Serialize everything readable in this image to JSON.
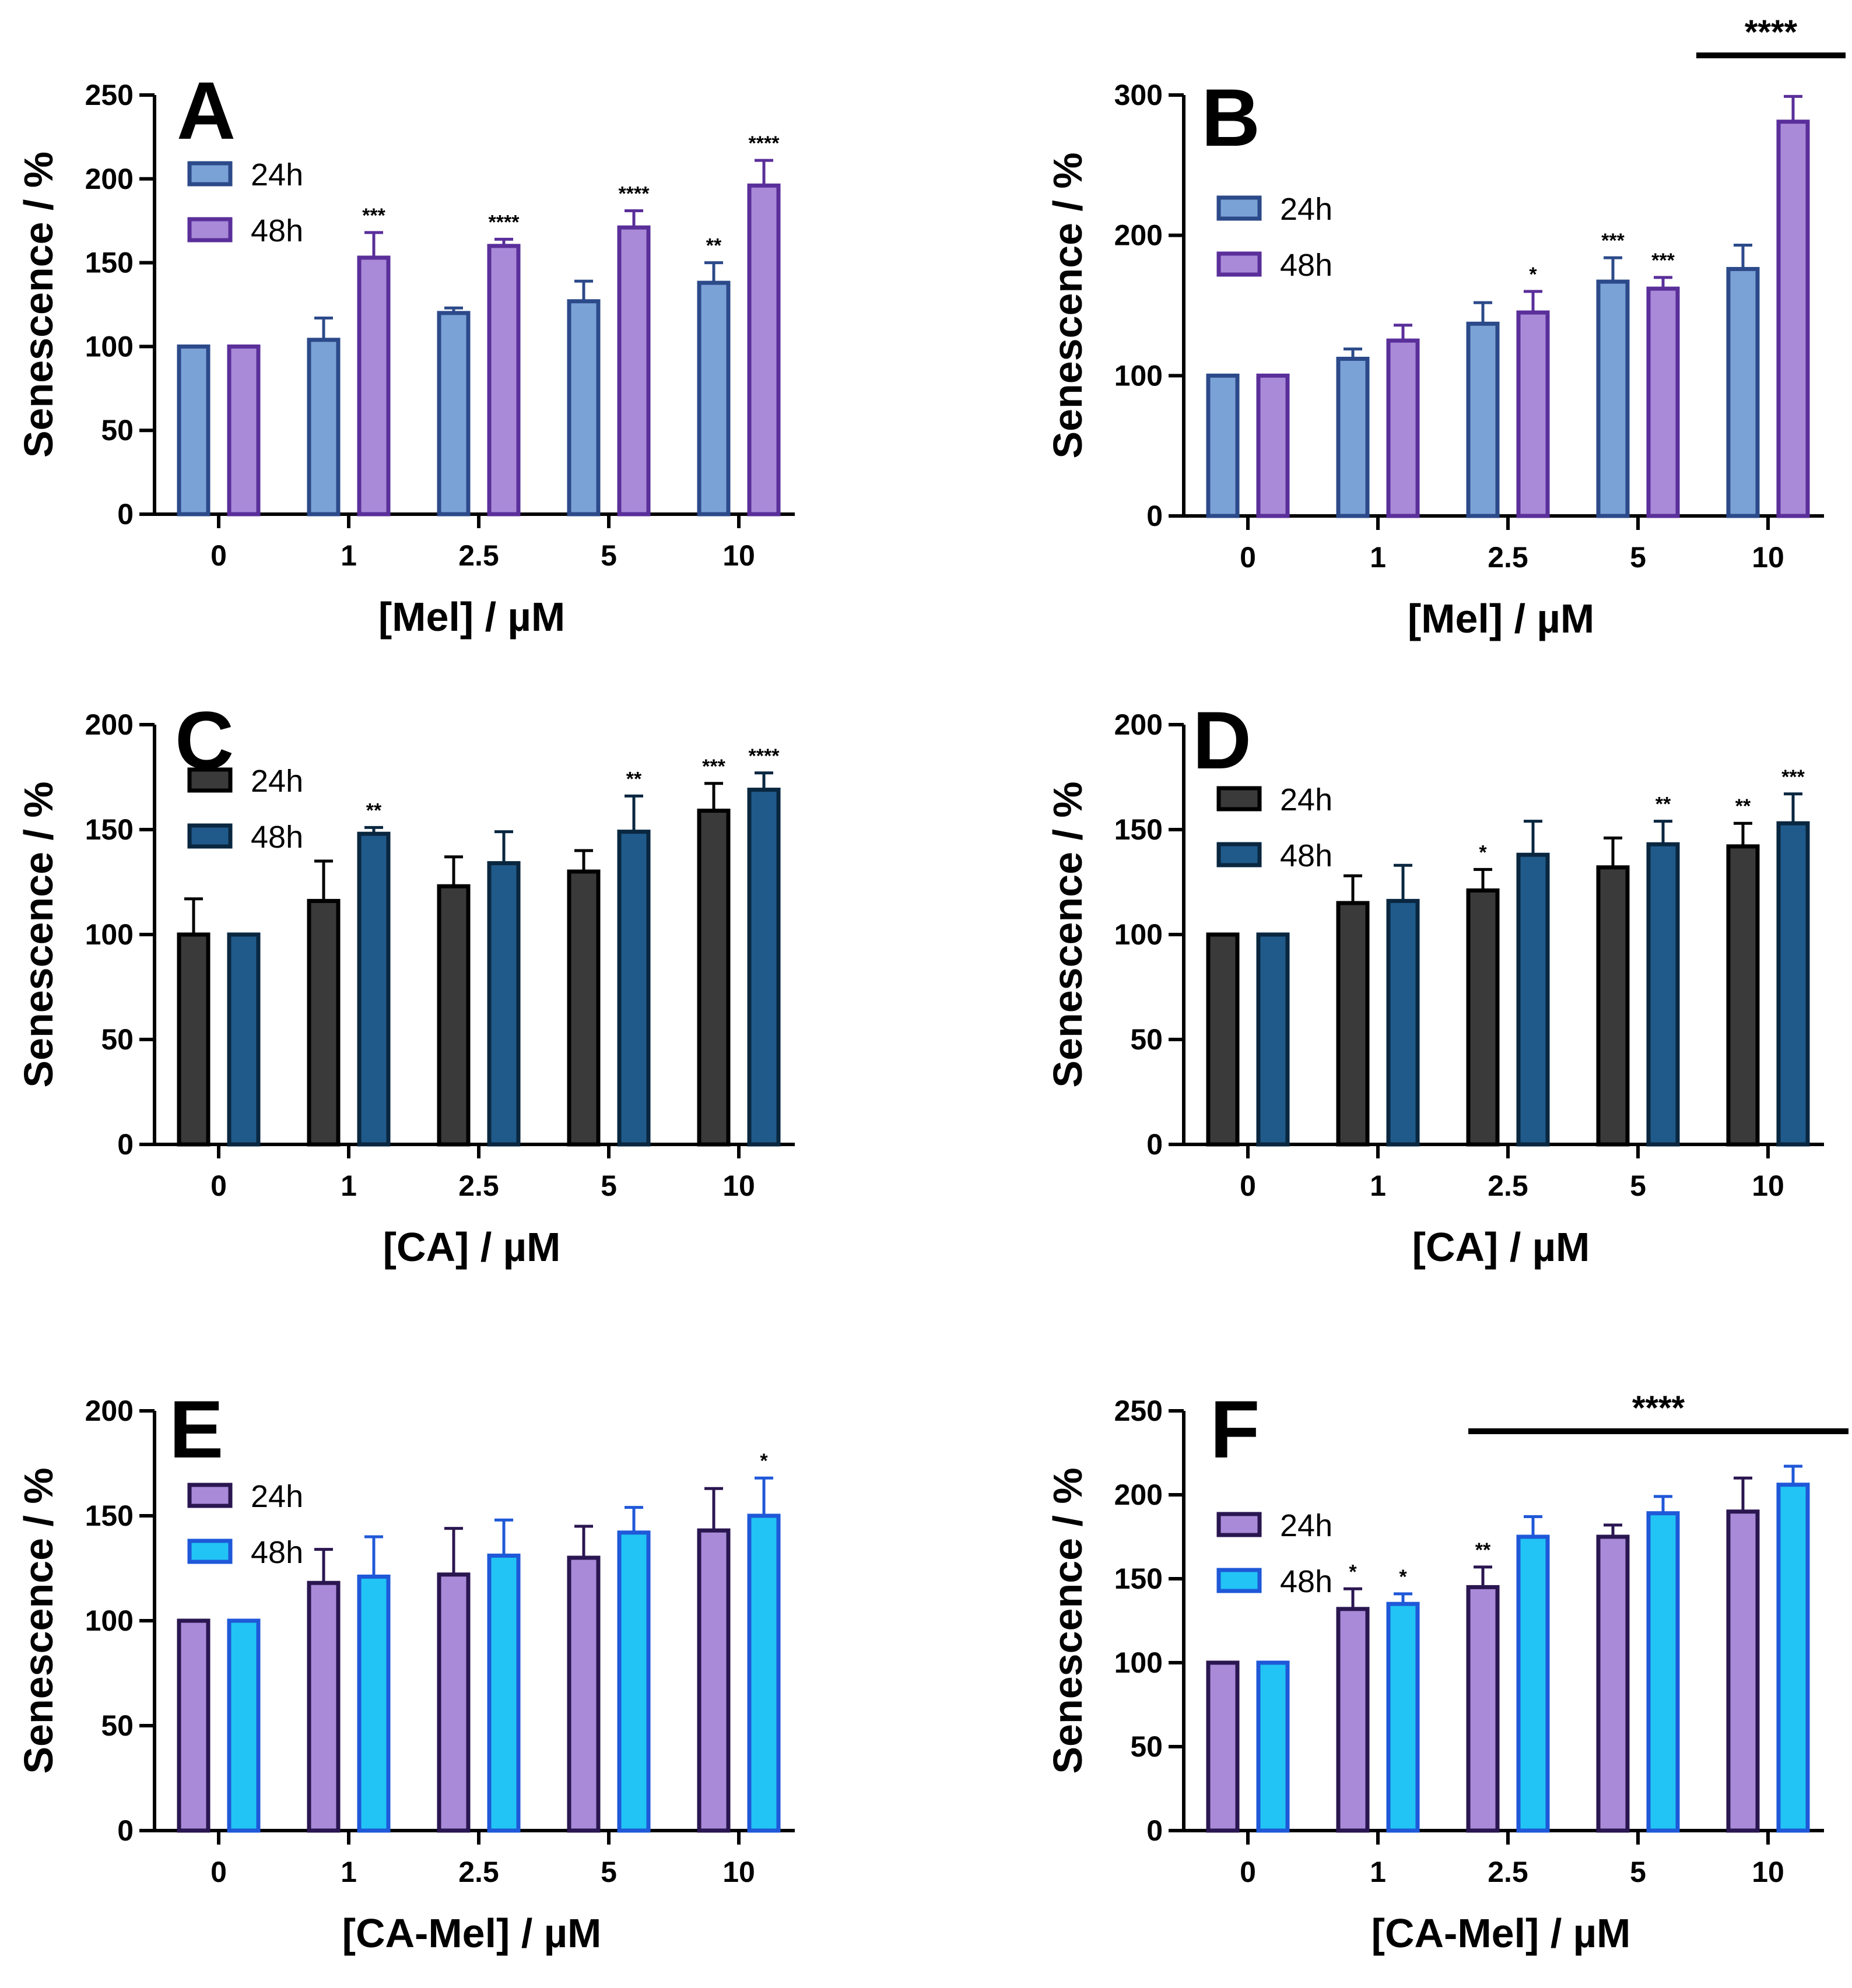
{
  "chart_data": [
    {
      "type": "bar",
      "panel": "A",
      "xlabel": "[Mel] / µM",
      "ylabel": "Senescence / %",
      "ylim": [
        0,
        250
      ],
      "yticks": [
        0,
        50,
        100,
        150,
        200,
        250
      ],
      "categories": [
        "0",
        "1",
        "2.5",
        "5",
        "10"
      ],
      "legend": [
        "24h",
        "48h"
      ],
      "colors": {
        "24h": {
          "fill": "#7ba2d6",
          "stroke": "#2c4a8a"
        },
        "48h": {
          "fill": "#a98ad8",
          "stroke": "#5a2f9a"
        }
      },
      "series": [
        {
          "name": "24h",
          "values": [
            100,
            104,
            120,
            127,
            138
          ],
          "errors": [
            0,
            13,
            3,
            12,
            12
          ],
          "sig": [
            "",
            "",
            "",
            "",
            "**"
          ]
        },
        {
          "name": "48h",
          "values": [
            100,
            153,
            160,
            171,
            196
          ],
          "errors": [
            0,
            15,
            4,
            10,
            15
          ],
          "sig": [
            "",
            "***",
            "****",
            "****",
            "****"
          ]
        }
      ]
    },
    {
      "type": "bar",
      "panel": "B",
      "xlabel": "[Mel] / µM",
      "ylabel": "Senescence / %",
      "ylim": [
        0,
        300
      ],
      "yticks": [
        0,
        100,
        200,
        300
      ],
      "categories": [
        "0",
        "1",
        "2.5",
        "5",
        "10"
      ],
      "legend": [
        "24h",
        "48h"
      ],
      "colors": {
        "24h": {
          "fill": "#7ba2d6",
          "stroke": "#2c4a8a"
        },
        "48h": {
          "fill": "#a98ad8",
          "stroke": "#5a2f9a"
        }
      },
      "series": [
        {
          "name": "24h",
          "values": [
            100,
            112,
            137,
            167,
            176
          ],
          "errors": [
            0,
            7,
            15,
            17,
            17
          ],
          "sig": [
            "",
            "",
            "",
            "***",
            ""
          ]
        },
        {
          "name": "48h",
          "values": [
            100,
            125,
            145,
            162,
            281
          ],
          "errors": [
            0,
            11,
            15,
            8,
            18
          ],
          "sig": [
            "",
            "",
            "*",
            "***",
            ""
          ]
        }
      ],
      "bracket": {
        "label": "****",
        "from_category": "10",
        "to_category": "10"
      }
    },
    {
      "type": "bar",
      "panel": "C",
      "xlabel": "[CA] / µM",
      "ylabel": "Senescence / %",
      "ylim": [
        0,
        200
      ],
      "yticks": [
        0,
        50,
        100,
        150,
        200
      ],
      "categories": [
        "0",
        "1",
        "2.5",
        "5",
        "10"
      ],
      "legend": [
        "24h",
        "48h"
      ],
      "colors": {
        "24h": {
          "fill": "#3a3a3a",
          "stroke": "#000000"
        },
        "48h": {
          "fill": "#1f5a8a",
          "stroke": "#0a2740"
        }
      },
      "series": [
        {
          "name": "24h",
          "values": [
            100,
            116,
            123,
            130,
            159
          ],
          "errors": [
            17,
            19,
            14,
            10,
            13
          ],
          "sig": [
            "",
            "",
            "",
            "",
            "***"
          ]
        },
        {
          "name": "48h",
          "values": [
            100,
            148,
            134,
            149,
            169
          ],
          "errors": [
            0,
            3,
            15,
            17,
            8
          ],
          "sig": [
            "",
            "**",
            "",
            "**",
            "****"
          ]
        }
      ]
    },
    {
      "type": "bar",
      "panel": "D",
      "xlabel": "[CA] / µM",
      "ylabel": "Senescence / %",
      "ylim": [
        0,
        200
      ],
      "yticks": [
        0,
        50,
        100,
        150,
        200
      ],
      "categories": [
        "0",
        "1",
        "2.5",
        "5",
        "10"
      ],
      "legend": [
        "24h",
        "48h"
      ],
      "colors": {
        "24h": {
          "fill": "#3a3a3a",
          "stroke": "#000000"
        },
        "48h": {
          "fill": "#1f5a8a",
          "stroke": "#0a2740"
        }
      },
      "series": [
        {
          "name": "24h",
          "values": [
            100,
            115,
            121,
            132,
            142
          ],
          "errors": [
            0,
            13,
            10,
            14,
            11
          ],
          "sig": [
            "",
            "",
            "*",
            "",
            "**"
          ]
        },
        {
          "name": "48h",
          "values": [
            100,
            116,
            138,
            143,
            153
          ],
          "errors": [
            0,
            17,
            16,
            11,
            14
          ],
          "sig": [
            "",
            "",
            "",
            "**",
            "***"
          ]
        }
      ]
    },
    {
      "type": "bar",
      "panel": "E",
      "xlabel": "[CA-Mel] / µM",
      "ylabel": "Senescence / %",
      "ylim": [
        0,
        200
      ],
      "yticks": [
        0,
        50,
        100,
        150,
        200
      ],
      "categories": [
        "0",
        "1",
        "2.5",
        "5",
        "10"
      ],
      "legend": [
        "24h",
        "48h"
      ],
      "colors": {
        "24h": {
          "fill": "#a98ad8",
          "stroke": "#2a1650"
        },
        "48h": {
          "fill": "#22c4f5",
          "stroke": "#1f58d8"
        }
      },
      "series": [
        {
          "name": "24h",
          "values": [
            100,
            118,
            122,
            130,
            143
          ],
          "errors": [
            0,
            16,
            22,
            15,
            20
          ],
          "sig": [
            "",
            "",
            "",
            "",
            ""
          ]
        },
        {
          "name": "48h",
          "values": [
            100,
            121,
            131,
            142,
            150
          ],
          "errors": [
            0,
            19,
            17,
            12,
            18
          ],
          "sig": [
            "",
            "",
            "",
            "",
            "*"
          ]
        }
      ]
    },
    {
      "type": "bar",
      "panel": "F",
      "xlabel": "[CA-Mel] / µM",
      "ylabel": "Senescence / %",
      "ylim": [
        0,
        250
      ],
      "yticks": [
        0,
        50,
        100,
        150,
        200,
        250
      ],
      "categories": [
        "0",
        "1",
        "2.5",
        "5",
        "10"
      ],
      "legend": [
        "24h",
        "48h"
      ],
      "colors": {
        "24h": {
          "fill": "#a98ad8",
          "stroke": "#2a1650"
        },
        "48h": {
          "fill": "#22c4f5",
          "stroke": "#1f58d8"
        }
      },
      "series": [
        {
          "name": "24h",
          "values": [
            100,
            132,
            145,
            175,
            190
          ],
          "errors": [
            0,
            12,
            12,
            7,
            20
          ],
          "sig": [
            "",
            "*",
            "**",
            "",
            ""
          ]
        },
        {
          "name": "48h",
          "values": [
            100,
            135,
            175,
            189,
            206
          ],
          "errors": [
            0,
            6,
            12,
            10,
            11
          ],
          "sig": [
            "",
            "*",
            "",
            "",
            ""
          ]
        }
      ],
      "bracket": {
        "label": "****",
        "from_category": "2.5",
        "to_category": "10"
      }
    }
  ]
}
